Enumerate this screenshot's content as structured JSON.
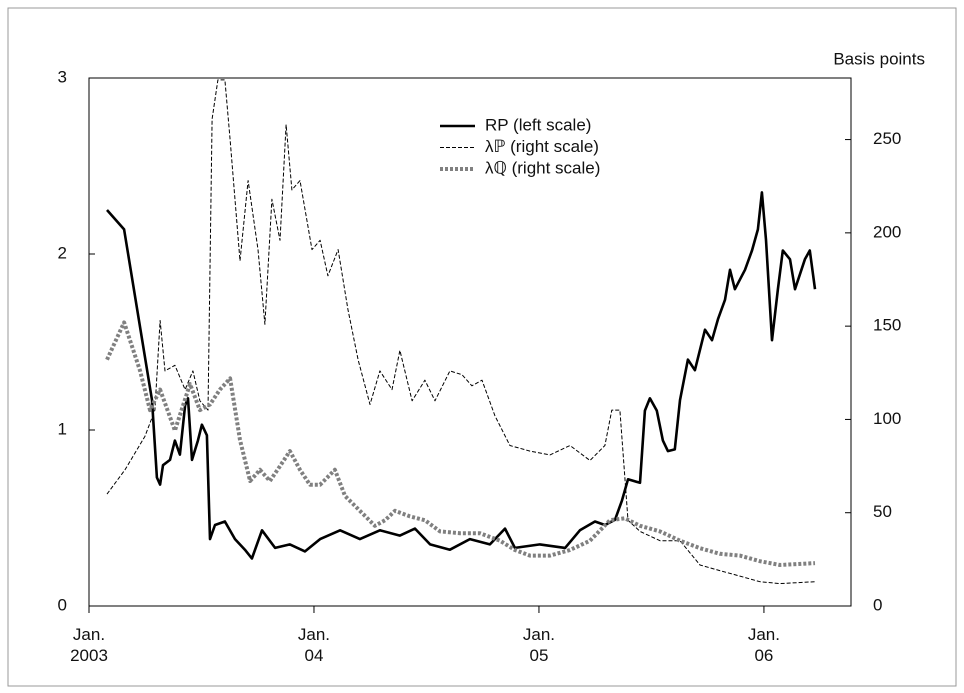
{
  "chart_data": {
    "type": "line",
    "y2_label": "Basis points",
    "xlim": [
      2003,
      2006.387
    ],
    "xticks": [
      {
        "value": 2003,
        "label": "Jan.\n2003"
      },
      {
        "value": 2004,
        "label": "Jan.\n04"
      },
      {
        "value": 2005,
        "label": "Jan.\n05"
      },
      {
        "value": 2006,
        "label": "Jan.\n06"
      }
    ],
    "ylim": [
      0,
      3
    ],
    "yticks": [
      0,
      1,
      2,
      3
    ],
    "y2lim": [
      0,
      283
    ],
    "y2ticks": [
      0,
      50,
      100,
      150,
      200,
      250
    ],
    "series": [
      {
        "name": "RP (left scale)",
        "color": "#000000",
        "style": "solid",
        "x": [
          2003.08,
          2003.156,
          2003.28,
          2003.302,
          2003.316,
          2003.329,
          2003.36,
          2003.382,
          2003.404,
          2003.427,
          2003.44,
          2003.458,
          2003.484,
          2003.502,
          2003.524,
          2003.538,
          2003.56,
          2003.604,
          2003.649,
          2003.693,
          2003.724,
          2003.769,
          2003.827,
          2003.893,
          2003.96,
          2004.027,
          2004.116,
          2004.204,
          2004.293,
          2004.382,
          2004.449,
          2004.516,
          2004.604,
          2004.693,
          2004.782,
          2004.849,
          2004.893,
          2005.004,
          2005.116,
          2005.182,
          2005.249,
          2005.293,
          2005.338,
          2005.369,
          2005.396,
          2005.449,
          2005.471,
          2005.493,
          2005.524,
          2005.551,
          2005.573,
          2005.604,
          2005.627,
          2005.662,
          2005.693,
          2005.738,
          2005.769,
          2005.796,
          2005.827,
          2005.849,
          2005.871,
          2005.916,
          2005.947,
          2005.973,
          2005.991,
          2006.009,
          2006.036,
          2006.062,
          2006.084,
          2006.116,
          2006.138,
          2006.182,
          2006.204,
          2006.227
        ],
        "values": [
          2.25,
          2.14,
          1.17,
          0.73,
          0.69,
          0.8,
          0.83,
          0.94,
          0.86,
          1.14,
          1.18,
          0.83,
          0.94,
          1.03,
          0.97,
          0.38,
          0.46,
          0.48,
          0.38,
          0.32,
          0.27,
          0.43,
          0.33,
          0.35,
          0.31,
          0.38,
          0.43,
          0.38,
          0.43,
          0.4,
          0.44,
          0.35,
          0.32,
          0.38,
          0.35,
          0.44,
          0.33,
          0.35,
          0.33,
          0.43,
          0.48,
          0.46,
          0.49,
          0.6,
          0.72,
          0.7,
          1.11,
          1.18,
          1.11,
          0.94,
          0.88,
          0.89,
          1.17,
          1.4,
          1.34,
          1.57,
          1.51,
          1.63,
          1.74,
          1.91,
          1.8,
          1.91,
          2.02,
          2.14,
          2.35,
          2.08,
          1.51,
          1.8,
          2.02,
          1.97,
          1.8,
          1.97,
          2.02,
          1.8
        ]
      },
      {
        "name": "λℙ (right scale)",
        "color": "#000000",
        "style": "dash",
        "axis": "y2",
        "x": [
          2003.08,
          2003.16,
          2003.249,
          2003.293,
          2003.316,
          2003.338,
          2003.382,
          2003.427,
          2003.462,
          2003.493,
          2003.529,
          2003.547,
          2003.573,
          2003.604,
          2003.627,
          2003.671,
          2003.707,
          2003.751,
          2003.782,
          2003.813,
          2003.849,
          2003.876,
          2003.902,
          2003.938,
          2003.991,
          2004.027,
          2004.062,
          2004.107,
          2004.151,
          2004.196,
          2004.249,
          2004.293,
          2004.347,
          2004.382,
          2004.436,
          2004.493,
          2004.538,
          2004.604,
          2004.658,
          2004.702,
          2004.747,
          2004.804,
          2004.871,
          2004.96,
          2005.049,
          2005.138,
          2005.227,
          2005.293,
          2005.324,
          2005.36,
          2005.396,
          2005.449,
          2005.538,
          2005.627,
          2005.716,
          2005.804,
          2005.893,
          2005.982,
          2006.071,
          2006.227
        ],
        "values": [
          60,
          73,
          91,
          105,
          153,
          126,
          129,
          116,
          126,
          110,
          105,
          261,
          282,
          282,
          250,
          185,
          228,
          191,
          151,
          218,
          196,
          258,
          223,
          228,
          191,
          196,
          177,
          191,
          159,
          132,
          108,
          126,
          116,
          137,
          110,
          121,
          110,
          126,
          124,
          118,
          121,
          102,
          86,
          83,
          81,
          86,
          78,
          86,
          105,
          105,
          46,
          40,
          35,
          35,
          22,
          19,
          16,
          13,
          12,
          13
        ]
      },
      {
        "name": "λℚ (right scale)",
        "color": "#808080",
        "style": "dot",
        "axis": "y2",
        "x": [
          2003.08,
          2003.156,
          2003.227,
          2003.271,
          2003.316,
          2003.382,
          2003.449,
          2003.493,
          2003.538,
          2003.582,
          2003.627,
          2003.671,
          2003.716,
          2003.76,
          2003.804,
          2003.849,
          2003.893,
          2003.938,
          2003.982,
          2004.027,
          2004.093,
          2004.138,
          2004.204,
          2004.271,
          2004.316,
          2004.36,
          2004.427,
          2004.493,
          2004.56,
          2004.649,
          2004.738,
          2004.827,
          2004.893,
          2004.96,
          2005.049,
          2005.138,
          2005.227,
          2005.316,
          2005.382,
          2005.449,
          2005.538,
          2005.627,
          2005.716,
          2005.804,
          2005.893,
          2005.982,
          2006.071,
          2006.227
        ],
        "values": [
          132,
          152,
          126,
          105,
          116,
          94,
          119,
          105,
          108,
          116,
          122,
          89,
          67,
          73,
          67,
          75,
          83,
          73,
          65,
          65,
          73,
          59,
          51,
          43,
          46,
          51,
          48,
          46,
          40,
          39,
          39,
          35,
          30,
          27,
          27,
          30,
          35,
          46,
          47,
          43,
          40,
          35,
          31,
          28,
          27,
          24,
          22,
          23
        ]
      }
    ]
  }
}
